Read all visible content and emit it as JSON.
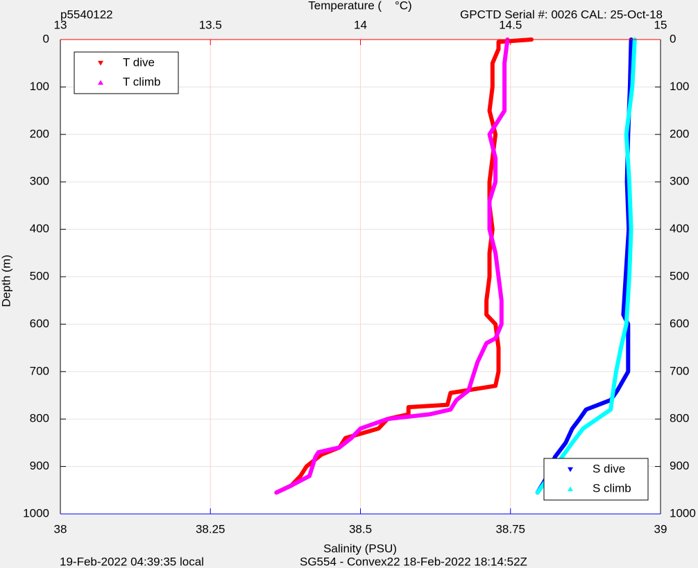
{
  "chart_data": {
    "type": "scatter",
    "title_left": "p5540122",
    "title_right": "GPCTD Serial #: 0026 CAL: 25-Oct-18",
    "x2label": "Temperature (    °C)",
    "xlabel": "Salinity (PSU)",
    "ylabel": "Depth (m)",
    "footer_left": "19-Feb-2022 04:39:35 local",
    "footer_center": "SG554 - Convex22 18-Feb-2022 18:14:52Z",
    "xlim": [
      38,
      39
    ],
    "xticks": [
      38,
      38.25,
      38.5,
      38.75,
      39
    ],
    "xcolor": "#0000ff",
    "x2lim": [
      13,
      15
    ],
    "x2ticks": [
      13,
      13.5,
      14,
      14.5,
      15
    ],
    "x2color": "#ff0000",
    "ylim": [
      0,
      1000
    ],
    "yticks": [
      0,
      100,
      200,
      300,
      400,
      500,
      600,
      700,
      800,
      900,
      1000
    ],
    "y_reversed": true,
    "grid": true,
    "series": [
      {
        "name": "T dive",
        "color": "#ff0000",
        "marker": "v",
        "axis": "x2",
        "legend": "upper left",
        "y": [
          0,
          5,
          20,
          50,
          100,
          150,
          200,
          250,
          300,
          350,
          400,
          450,
          500,
          550,
          580,
          600,
          650,
          700,
          730,
          745,
          770,
          775,
          790,
          800,
          820,
          840,
          860,
          875,
          900,
          920,
          940,
          955
        ],
        "x": [
          14.57,
          14.46,
          14.46,
          14.44,
          14.44,
          14.43,
          14.45,
          14.44,
          14.43,
          14.43,
          14.44,
          14.43,
          14.43,
          14.42,
          14.42,
          14.45,
          14.46,
          14.46,
          14.45,
          14.3,
          14.29,
          14.16,
          14.16,
          14.09,
          14.06,
          13.95,
          13.93,
          13.87,
          13.82,
          13.8,
          13.77,
          13.72
        ]
      },
      {
        "name": "T climb",
        "color": "#ff00ff",
        "marker": "^",
        "axis": "x2",
        "legend": "upper left",
        "y": [
          0,
          50,
          100,
          150,
          190,
          200,
          250,
          300,
          340,
          400,
          450,
          500,
          550,
          600,
          630,
          640,
          680,
          720,
          740,
          760,
          780,
          790,
          800,
          820,
          840,
          860,
          870,
          880,
          900,
          920,
          940,
          955
        ],
        "x": [
          14.49,
          14.48,
          14.48,
          14.48,
          14.44,
          14.43,
          14.45,
          14.45,
          14.43,
          14.43,
          14.45,
          14.46,
          14.47,
          14.47,
          14.45,
          14.42,
          14.39,
          14.37,
          14.36,
          14.32,
          14.3,
          14.23,
          14.09,
          14.0,
          13.97,
          13.93,
          13.86,
          13.85,
          13.84,
          13.83,
          13.77,
          13.72
        ]
      },
      {
        "name": "S dive",
        "color": "#0000ff",
        "marker": "v",
        "axis": "x",
        "legend": "lower right",
        "y": [
          0,
          100,
          200,
          300,
          400,
          500,
          580,
          600,
          700,
          740,
          760,
          780,
          800,
          820,
          850,
          880,
          900,
          930,
          955
        ],
        "x": [
          38.951,
          38.949,
          38.946,
          38.944,
          38.947,
          38.942,
          38.938,
          38.946,
          38.946,
          38.928,
          38.917,
          38.876,
          38.865,
          38.853,
          38.842,
          38.824,
          38.818,
          38.807,
          38.795
        ]
      },
      {
        "name": "S climb",
        "color": "#00ffff",
        "marker": "^",
        "axis": "x",
        "legend": "lower right",
        "y": [
          0,
          100,
          200,
          300,
          400,
          500,
          600,
          650,
          700,
          750,
          780,
          800,
          820,
          850,
          880,
          920,
          955
        ],
        "x": [
          38.957,
          38.953,
          38.943,
          38.948,
          38.951,
          38.948,
          38.943,
          38.934,
          38.926,
          38.92,
          38.917,
          38.894,
          38.871,
          38.853,
          38.836,
          38.815,
          38.795
        ]
      }
    ]
  }
}
